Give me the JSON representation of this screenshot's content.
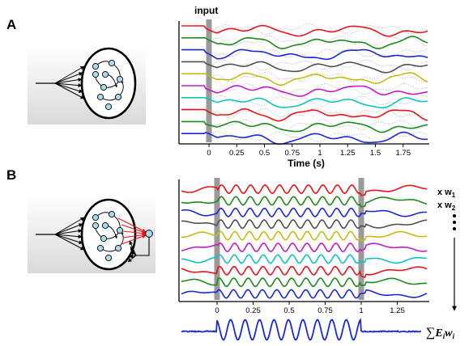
{
  "panel_a": {
    "letter": "A",
    "input_label": "input",
    "x_axis_title": "Time (s)",
    "x_ticks": [
      "0",
      "0.25",
      "0.5",
      "0.75",
      "1",
      "1.25",
      "1.5",
      "1.75"
    ],
    "input_pulse_time": 0,
    "trace_count": 10
  },
  "panel_b": {
    "letter": "B",
    "x_ticks": [
      "0",
      "0.25",
      "0.5",
      "0.75",
      "1",
      "1.25"
    ],
    "input_pulse_times": [
      0,
      1
    ],
    "trace_count": 10,
    "weight_labels": [
      {
        "prefix": "x w",
        "sub": "1"
      },
      {
        "prefix": "x w",
        "sub": "2"
      }
    ],
    "sum_label": {
      "sigma": "∑",
      "e": "E",
      "e_sub": "i",
      "w": "w",
      "w_sub": "i"
    }
  },
  "colors": {
    "traces": [
      "#e8141b",
      "#1d8a1d",
      "#1a28d6",
      "#505050",
      "#c6bb12",
      "#c41bc6",
      "#12c2c2",
      "#e8141b",
      "#1d8a1d",
      "#1a28d6"
    ],
    "output": "#1a28d6",
    "readout": "#e8141b",
    "pulse": "#9a9a9a",
    "node": "#a9dce8"
  }
}
